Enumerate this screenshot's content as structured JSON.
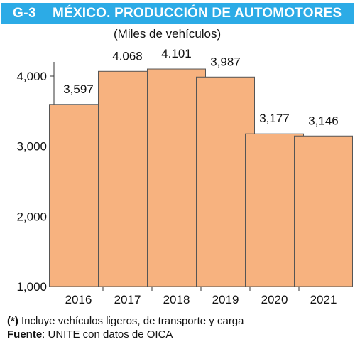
{
  "header": {
    "code": "G-3",
    "title": "MÉXICO. PRODUCCIÓN DE AUTOMOTORES",
    "subtitle": "(Miles de vehículos)"
  },
  "footer": {
    "note_marker": "(*)",
    "note_text": " Incluye vehículos ligeros, de transporte y carga",
    "source_label": "Fuente",
    "source_text": ": UNITE con datos de OICA"
  },
  "colors": {
    "title_bg": "#2cabe6",
    "bar_fill": "#f7b27f",
    "bar_stroke": "#555555"
  },
  "chart_data": {
    "type": "bar",
    "title": "MÉXICO. PRODUCCIÓN DE AUTOMOTORES",
    "subtitle": "(Miles de vehículos)",
    "categories": [
      "2016",
      "2017",
      "2018",
      "2019",
      "2020",
      "2021"
    ],
    "values": [
      3597,
      4068,
      4101,
      3987,
      3177,
      3146
    ],
    "data_labels": [
      "3,597",
      "4.068",
      "4.101",
      "3,987",
      "3,177",
      "3,146"
    ],
    "ylim": [
      1000,
      4300
    ],
    "yticks": [
      1000,
      2000,
      3000,
      4000
    ],
    "ytick_labels": [
      "1,000",
      "2,000",
      "3,000",
      "4,000"
    ],
    "grid": false,
    "xlabel": "",
    "ylabel": ""
  }
}
